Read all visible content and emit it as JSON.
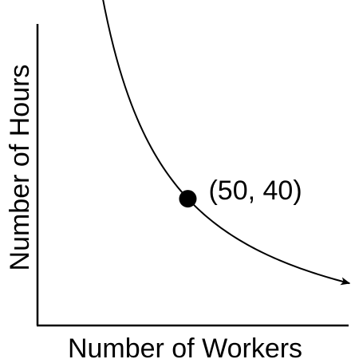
{
  "chart_data": {
    "type": "line",
    "title": "",
    "xlabel": "Number of Workers",
    "ylabel": "Number of Hours",
    "grid": false,
    "ticks": false,
    "series": [
      {
        "relation": "x * y = 2000",
        "point": {
          "x": 50,
          "y": 40,
          "label": "(50, 40)"
        }
      }
    ],
    "colors": {
      "line": "#000000",
      "point": "#000000"
    }
  }
}
